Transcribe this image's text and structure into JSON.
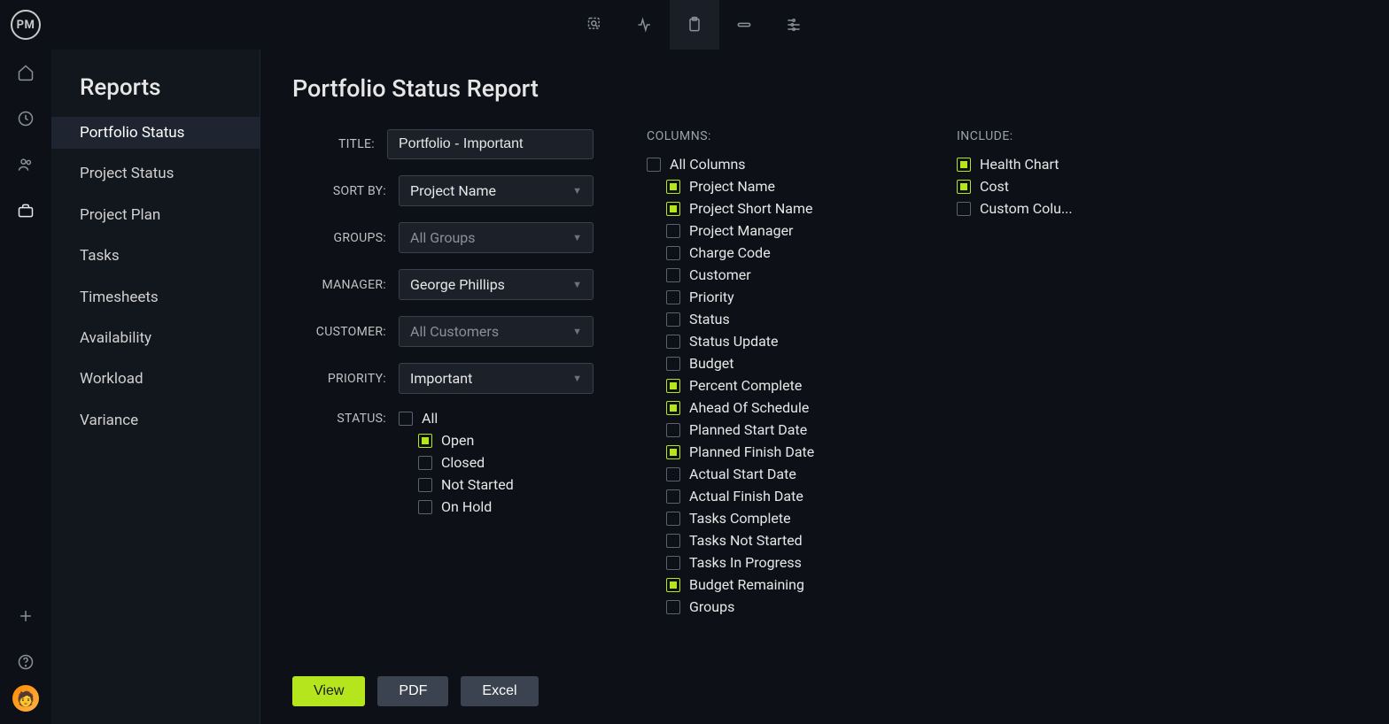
{
  "colors": {
    "background": "#0d1117",
    "panel": "#12161d",
    "input_bg": "#1b2029",
    "border": "#3a3f4b",
    "text": "#e6e6e6",
    "muted": "#8a8f98",
    "accent": "#b5e61d"
  },
  "logo_text": "PM",
  "sidebar": {
    "title": "Reports",
    "items": [
      {
        "label": "Portfolio Status",
        "active": true
      },
      {
        "label": "Project Status"
      },
      {
        "label": "Project Plan"
      },
      {
        "label": "Tasks"
      },
      {
        "label": "Timesheets"
      },
      {
        "label": "Availability"
      },
      {
        "label": "Workload"
      },
      {
        "label": "Variance"
      }
    ]
  },
  "page_title": "Portfolio Status Report",
  "form": {
    "title_label": "TITLE:",
    "title_value": "Portfolio - Important",
    "sort_label": "SORT BY:",
    "sort_value": "Project Name",
    "groups_label": "GROUPS:",
    "groups_value": "All Groups",
    "manager_label": "MANAGER:",
    "manager_value": "George Phillips",
    "customer_label": "CUSTOMER:",
    "customer_value": "All Customers",
    "priority_label": "PRIORITY:",
    "priority_value": "Important",
    "status_label": "STATUS:",
    "status_options": [
      {
        "label": "All",
        "checked": false
      },
      {
        "label": "Open",
        "checked": true
      },
      {
        "label": "Closed",
        "checked": false
      },
      {
        "label": "Not Started",
        "checked": false
      },
      {
        "label": "On Hold",
        "checked": false
      }
    ]
  },
  "columns": {
    "header": "COLUMNS:",
    "all_label": "All Columns",
    "all_checked": false,
    "items": [
      {
        "label": "Project Name",
        "checked": true
      },
      {
        "label": "Project Short Name",
        "checked": true
      },
      {
        "label": "Project Manager",
        "checked": false
      },
      {
        "label": "Charge Code",
        "checked": false
      },
      {
        "label": "Customer",
        "checked": false
      },
      {
        "label": "Priority",
        "checked": false
      },
      {
        "label": "Status",
        "checked": false
      },
      {
        "label": "Status Update",
        "checked": false
      },
      {
        "label": "Budget",
        "checked": false
      },
      {
        "label": "Percent Complete",
        "checked": true
      },
      {
        "label": "Ahead Of Schedule",
        "checked": true
      },
      {
        "label": "Planned Start Date",
        "checked": false
      },
      {
        "label": "Planned Finish Date",
        "checked": true
      },
      {
        "label": "Actual Start Date",
        "checked": false
      },
      {
        "label": "Actual Finish Date",
        "checked": false
      },
      {
        "label": "Tasks Complete",
        "checked": false
      },
      {
        "label": "Tasks Not Started",
        "checked": false
      },
      {
        "label": "Tasks In Progress",
        "checked": false
      },
      {
        "label": "Budget Remaining",
        "checked": true
      },
      {
        "label": "Groups",
        "checked": false
      }
    ]
  },
  "include": {
    "header": "INCLUDE:",
    "items": [
      {
        "label": "Health Chart",
        "checked": true
      },
      {
        "label": "Cost",
        "checked": true
      },
      {
        "label": "Custom Colu...",
        "checked": false
      }
    ]
  },
  "buttons": {
    "view": "View",
    "pdf": "PDF",
    "excel": "Excel"
  }
}
